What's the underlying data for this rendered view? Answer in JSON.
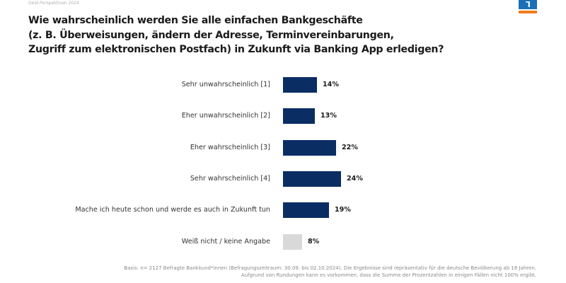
{
  "header": {
    "subtitle": "Geld-Perspektiven 2024",
    "logo_icon": "volksbank-logo-icon",
    "logo_colors": {
      "blue": "#1a6fb5",
      "orange": "#f07d1a"
    }
  },
  "title_lines": [
    "Wie wahrscheinlich werden Sie alle einfachen Bankgeschäfte",
    "(z. B. Überweisungen, ändern der Adresse, Terminvereinbarungen,",
    "Zugriff zum elektronischen Postfach) in Zukunft via Banking App erledigen?"
  ],
  "rows": [
    {
      "label": "Sehr unwahrscheinlich [1]",
      "value_label": "14%"
    },
    {
      "label": "Eher unwahrscheinlich [2]",
      "value_label": "13%"
    },
    {
      "label": "Eher wahrscheinlich [3]",
      "value_label": "22%"
    },
    {
      "label": "Sehr wahrscheinlich [4]",
      "value_label": "24%"
    },
    {
      "label": "Mache ich heute schon und werde es auch in Zukunft tun",
      "value_label": "19%"
    },
    {
      "label": "Weiß nicht / keine Angabe",
      "value_label": "8%"
    }
  ],
  "footnote": {
    "line1": "Basis: n= 2127 Befragte Bankkund*innen (Befragungszeitraum: 30.09. bis 02.10.2024). Die Ergebnisse sind repräsentativ für die deutsche Bevölkerung ab 18 Jahren.",
    "line2": "Aufgrund von Rundungen kann es vorkommen, dass die Summe der Prozentzahlen in einigen Fällen nicht 100% ergibt."
  },
  "chart_data": {
    "type": "bar",
    "orientation": "horizontal",
    "title": "Wie wahrscheinlich werden Sie alle einfachen Bankgeschäfte (z. B. Überweisungen, ändern der Adresse, Terminvereinbarungen, Zugriff zum elektronischen Postfach) in Zukunft via Banking App erledigen?",
    "categories": [
      "Sehr unwahrscheinlich [1]",
      "Eher unwahrscheinlich [2]",
      "Eher wahrscheinlich [3]",
      "Sehr wahrscheinlich [4]",
      "Mache ich heute schon und werde es auch in Zukunft tun",
      "Weiß nicht / keine Angabe"
    ],
    "values": [
      14,
      13,
      22,
      24,
      19,
      8
    ],
    "unit": "%",
    "colors": [
      "#0a2d64",
      "#0a2d64",
      "#0a2d64",
      "#0a2d64",
      "#0a2d64",
      "#d9d9d9"
    ],
    "xlabel": "",
    "ylabel": "",
    "grid": false,
    "legend": null,
    "data_labels": true
  }
}
